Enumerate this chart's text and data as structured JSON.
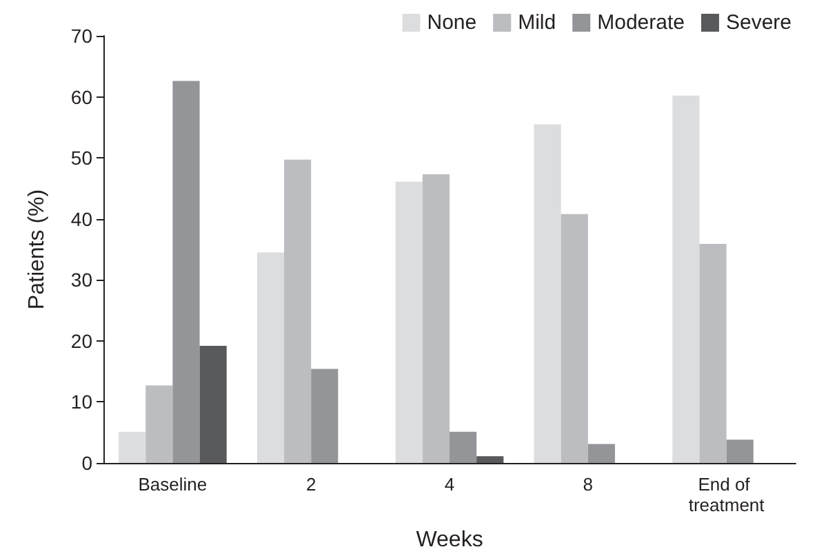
{
  "chart_data": {
    "type": "bar",
    "xlabel": "Weeks",
    "ylabel": "Patients (%)",
    "categories": [
      "Baseline",
      "2",
      "4",
      "8",
      "End of treatment"
    ],
    "series": [
      {
        "name": "None",
        "color": "#dcdddf",
        "values": [
          5.1,
          34.5,
          46.1,
          55.5,
          60.2
        ]
      },
      {
        "name": "Mild",
        "color": "#bcbdc0",
        "values": [
          12.7,
          49.7,
          47.3,
          40.8,
          35.9
        ]
      },
      {
        "name": "Moderate",
        "color": "#939598",
        "values": [
          62.6,
          15.4,
          5.1,
          3.1,
          3.8
        ]
      },
      {
        "name": "Severe",
        "color": "#58595b",
        "values": [
          19.2,
          null,
          1.1,
          null,
          null
        ]
      }
    ],
    "ylim": [
      0,
      70
    ],
    "yticks": [
      0,
      10,
      20,
      30,
      40,
      50,
      60,
      70
    ],
    "grid": false,
    "legend": "top right"
  }
}
